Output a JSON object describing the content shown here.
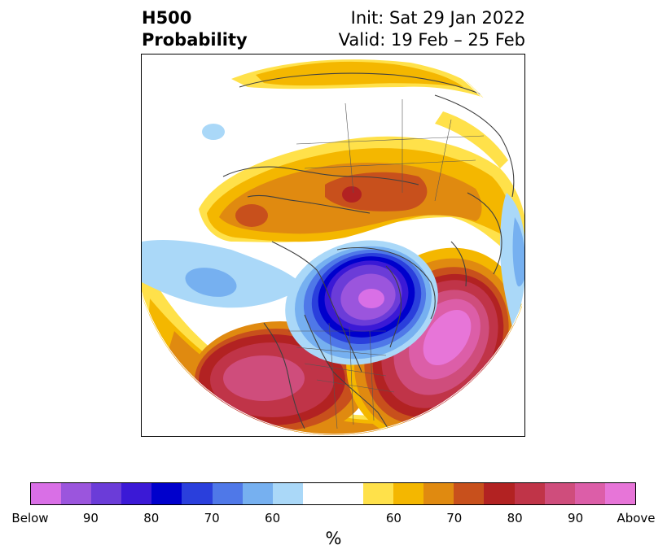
{
  "header": {
    "title_line1": "H500",
    "title_line2": "Probability",
    "init_text": "Init: Sat 29 Jan 2022",
    "valid_text": "Valid: 19 Feb – 25 Feb"
  },
  "colorbar": {
    "colors": [
      "#d96fe6",
      "#9b55dd",
      "#6b3cd8",
      "#3b19d6",
      "#0000cc",
      "#2a3fdc",
      "#4f78e8",
      "#76b0f0",
      "#aad8f8",
      "#ffffff",
      "#ffffff",
      "#ffe14a",
      "#f4b700",
      "#e08a10",
      "#c8501c",
      "#b22222",
      "#c03448",
      "#cf4d7c",
      "#dc5ea8",
      "#e775d8"
    ],
    "tick_labels": [
      "Below",
      "90",
      "80",
      "70",
      "60",
      "",
      "60",
      "70",
      "80",
      "90",
      "Above"
    ],
    "unit_label": "%"
  }
}
